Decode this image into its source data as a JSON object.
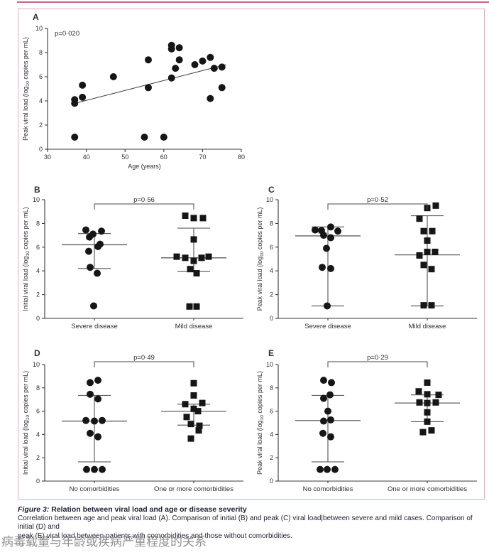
{
  "colors": {
    "rule": "#bd6b80",
    "frame_border": "#e3aebc",
    "marker": "#161616",
    "axis": "#3a3a3a",
    "text": "#2f2f36",
    "stat_lines": "#606060",
    "trend": "#3a3a3a",
    "bracket": "#4a4a4a",
    "caption_text": "#201f31",
    "chinese_text": "#8f8f8f"
  },
  "caption": {
    "label": "Figure 3:",
    "title": " Relation between viral load and age or disease severity",
    "body": [
      "Correlation between age and peak viral load (A). Comparison of initial (B) and peak (C) viral load|between severe and mild cases. Comparison of initial (D) and",
      "peak (E) viral load between patients with comorbidities and those without comorbidities."
    ]
  },
  "footer_cn": "病毒载量与年龄或疾病严重程度的关系",
  "chart_data": [
    {
      "id": "A",
      "type": "scatter",
      "panel_label": "A",
      "p_value": "p=0·020",
      "xlabel": "Age (years)",
      "ylabel": {
        "pre": "Peak viral load (log",
        "sub": "10",
        "post": " copies per mL)"
      },
      "xlim": [
        30,
        80
      ],
      "xticks": [
        30,
        40,
        50,
        60,
        70,
        80
      ],
      "ylim": [
        0,
        10
      ],
      "yticks": [
        0,
        2,
        4,
        6,
        8,
        10
      ],
      "points": [
        [
          37,
          1.0
        ],
        [
          37,
          3.8
        ],
        [
          37,
          4.1
        ],
        [
          39,
          4.3
        ],
        [
          39,
          5.3
        ],
        [
          47,
          6.0
        ],
        [
          55,
          1.0
        ],
        [
          56,
          5.1
        ],
        [
          56,
          7.4
        ],
        [
          60,
          1.0
        ],
        [
          62,
          5.9
        ],
        [
          62,
          8.3
        ],
        [
          62,
          8.6
        ],
        [
          63,
          6.7
        ],
        [
          64,
          7.4
        ],
        [
          64,
          8.4
        ],
        [
          68,
          7.0
        ],
        [
          70,
          7.3
        ],
        [
          72,
          4.2
        ],
        [
          72,
          7.6
        ],
        [
          73,
          6.7
        ],
        [
          75,
          5.1
        ],
        [
          75,
          6.8
        ]
      ],
      "trend": {
        "x1": 37,
        "y1": 3.8,
        "x2": 76,
        "y2": 7.0
      }
    },
    {
      "id": "B",
      "type": "strip",
      "panel_label": "B",
      "p_value": "p=0·56",
      "ylabel": {
        "pre": "Initial viral load (log",
        "sub": "10",
        "post": " copies per mL)"
      },
      "ylim": [
        0,
        10
      ],
      "yticks": [
        0,
        2,
        4,
        6,
        8,
        10
      ],
      "groups": [
        {
          "label": "Severe disease",
          "marker": "circle",
          "median": 6.2,
          "upper_whisker": 7.15,
          "lower_whisker": 4.2,
          "points": [
            [
              -12,
              7.45
            ],
            [
              10,
              7.35
            ],
            [
              -2,
              7.1
            ],
            [
              -7,
              6.85
            ],
            [
              8,
              6.25
            ],
            [
              5,
              6.05
            ],
            [
              -8,
              5.65
            ],
            [
              -6,
              4.3
            ],
            [
              4,
              3.8
            ],
            [
              -1,
              1.05
            ]
          ]
        },
        {
          "label": "Mild disease",
          "marker": "square",
          "median": 5.1,
          "upper_whisker": 7.6,
          "lower_whisker": 3.95,
          "points": [
            [
              -12,
              8.65
            ],
            [
              0,
              8.45
            ],
            [
              13,
              8.45
            ],
            [
              0,
              6.65
            ],
            [
              -24,
              5.2
            ],
            [
              -12,
              5.1
            ],
            [
              11,
              5.1
            ],
            [
              21,
              5.2
            ],
            [
              0,
              4.85
            ],
            [
              -5,
              4.15
            ],
            [
              4,
              3.8
            ],
            [
              -6,
              1.0
            ],
            [
              4,
              1.0
            ]
          ]
        }
      ]
    },
    {
      "id": "C",
      "type": "strip",
      "panel_label": "C",
      "p_value": "p=0·52",
      "ylabel": {
        "pre": "Peak viral load (log",
        "sub": "10",
        "post": " copies per mL)"
      },
      "ylim": [
        0,
        10
      ],
      "yticks": [
        0,
        2,
        4,
        6,
        8,
        10
      ],
      "groups": [
        {
          "label": "Severe disease",
          "marker": "circle",
          "median": 6.95,
          "upper_whisker": 7.7,
          "lower_whisker": 1.05,
          "points": [
            [
              -18,
              7.45
            ],
            [
              -9,
              7.4
            ],
            [
              4,
              7.7
            ],
            [
              14,
              7.35
            ],
            [
              -6,
              7.0
            ],
            [
              4,
              6.8
            ],
            [
              -2,
              5.9
            ],
            [
              -8,
              4.3
            ],
            [
              4,
              4.2
            ],
            [
              -1,
              1.05
            ]
          ]
        },
        {
          "label": "Mild disease",
          "marker": "square",
          "median": 5.35,
          "upper_whisker": 8.65,
          "lower_whisker": 1.05,
          "points": [
            [
              0,
              9.3
            ],
            [
              12,
              9.5
            ],
            [
              -11,
              8.4
            ],
            [
              -5,
              7.35
            ],
            [
              7,
              7.35
            ],
            [
              0,
              6.55
            ],
            [
              0,
              5.6
            ],
            [
              11,
              5.6
            ],
            [
              -11,
              5.3
            ],
            [
              -5,
              4.5
            ],
            [
              6,
              4.15
            ],
            [
              -5,
              1.1
            ],
            [
              6,
              1.1
            ]
          ]
        }
      ]
    },
    {
      "id": "D",
      "type": "strip",
      "panel_label": "D",
      "p_value": "p=0·49",
      "ylabel": {
        "pre": "Initial viral load (log",
        "sub": "10",
        "post": " copies per mL)"
      },
      "ylim": [
        0,
        10
      ],
      "yticks": [
        0,
        2,
        4,
        6,
        8,
        10
      ],
      "groups": [
        {
          "label": "No comorbidities",
          "marker": "circle",
          "median": 5.15,
          "upper_whisker": 7.35,
          "lower_whisker": 1.65,
          "points": [
            [
              -6,
              8.45
            ],
            [
              5,
              8.65
            ],
            [
              -6,
              7.45
            ],
            [
              5,
              7.05
            ],
            [
              -12,
              5.2
            ],
            [
              0,
              5.15
            ],
            [
              11,
              5.2
            ],
            [
              -6,
              4.1
            ],
            [
              5,
              3.8
            ],
            [
              -11,
              1.0
            ],
            [
              0,
              1.0
            ],
            [
              11,
              1.0
            ]
          ]
        },
        {
          "label": "One or more comorbidities",
          "marker": "square",
          "median": 6.0,
          "upper_whisker": 6.6,
          "lower_whisker": 4.8,
          "points": [
            [
              0,
              8.4
            ],
            [
              0,
              7.35
            ],
            [
              -12,
              6.6
            ],
            [
              12,
              6.7
            ],
            [
              0,
              6.2
            ],
            [
              6,
              6.0
            ],
            [
              -10,
              5.5
            ],
            [
              -4,
              4.9
            ],
            [
              8,
              4.75
            ],
            [
              7,
              4.35
            ],
            [
              -4,
              3.65
            ]
          ]
        }
      ]
    },
    {
      "id": "E",
      "type": "strip",
      "panel_label": "E",
      "p_value": "p=0·29",
      "ylabel": {
        "pre": "Peak viral load (log",
        "sub": "10",
        "post": " copies per mL)"
      },
      "ylim": [
        0,
        10
      ],
      "yticks": [
        0,
        2,
        4,
        6,
        8,
        10
      ],
      "groups": [
        {
          "label": "No comorbidities",
          "marker": "circle",
          "median": 5.2,
          "upper_whisker": 7.35,
          "lower_whisker": 1.65,
          "points": [
            [
              -6,
              8.65
            ],
            [
              5,
              8.45
            ],
            [
              3,
              7.4
            ],
            [
              -6,
              7.1
            ],
            [
              0,
              6.0
            ],
            [
              4,
              5.25
            ],
            [
              -6,
              5.15
            ],
            [
              -7,
              4.1
            ],
            [
              4,
              3.8
            ],
            [
              -11,
              1.0
            ],
            [
              -1,
              1.0
            ],
            [
              10,
              1.0
            ]
          ]
        },
        {
          "label": "One or more comorbidities",
          "marker": "square",
          "median": 6.7,
          "upper_whisker": 7.4,
          "lower_whisker": 5.1,
          "points": [
            [
              0,
              8.45
            ],
            [
              -12,
              7.7
            ],
            [
              0,
              7.45
            ],
            [
              16,
              7.4
            ],
            [
              -11,
              6.75
            ],
            [
              12,
              6.75
            ],
            [
              0,
              6.7
            ],
            [
              0,
              5.9
            ],
            [
              0,
              5.1
            ],
            [
              -6,
              4.2
            ],
            [
              6,
              4.35
            ]
          ]
        }
      ]
    }
  ]
}
